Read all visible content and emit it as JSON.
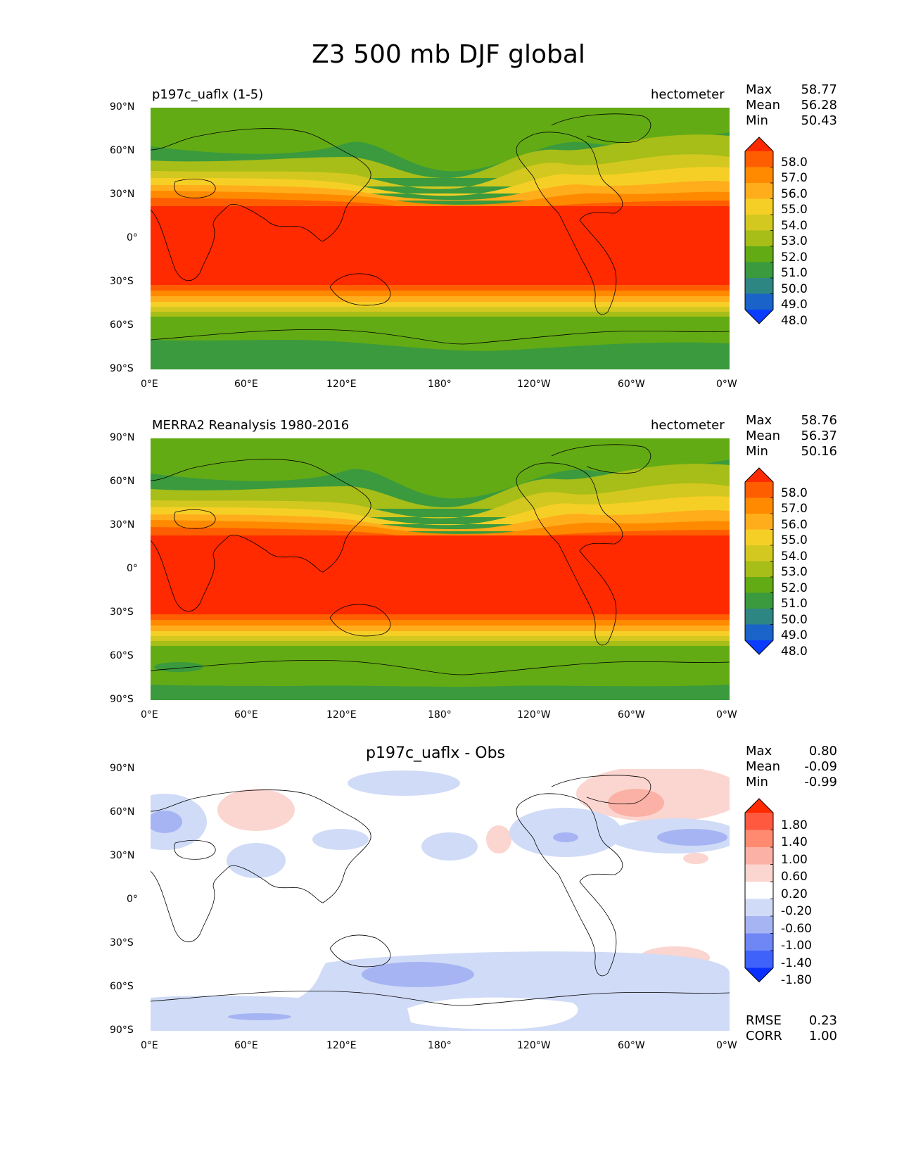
{
  "title": "Z3 500 mb DJF global",
  "lat_ticks": [
    "90°N",
    "60°N",
    "30°N",
    "0°",
    "30°S",
    "60°S",
    "90°S"
  ],
  "lon_ticks": [
    "0°E",
    "60°E",
    "120°E",
    "180°",
    "120°W",
    "60°W",
    "0°W"
  ],
  "panels": [
    {
      "title": "p197c_uaflx (1-5)",
      "units": "hectometer",
      "stats": {
        "max_label": "Max",
        "max": "58.77",
        "mean_label": "Mean",
        "mean": "56.28",
        "min_label": "Min",
        "min": "50.43"
      },
      "colorbar_labels": [
        "58.0",
        "57.0",
        "56.0",
        "55.0",
        "54.0",
        "53.0",
        "52.0",
        "51.0",
        "50.0",
        "49.0",
        "48.0"
      ],
      "colorbar_colors": [
        "#ff2a00",
        "#ff5e00",
        "#ff8a00",
        "#ffad1a",
        "#f6cf26",
        "#d3c81f",
        "#a7bd18",
        "#63ab14",
        "#3a9a3d",
        "#2e8683",
        "#1a63c8",
        "#0a3dff"
      ]
    },
    {
      "title": "MERRA2 Reanalysis 1980-2016",
      "units": "hectometer",
      "stats": {
        "max_label": "Max",
        "max": "58.76",
        "mean_label": "Mean",
        "mean": "56.37",
        "min_label": "Min",
        "min": "50.16"
      },
      "colorbar_labels": [
        "58.0",
        "57.0",
        "56.0",
        "55.0",
        "54.0",
        "53.0",
        "52.0",
        "51.0",
        "50.0",
        "49.0",
        "48.0"
      ],
      "colorbar_colors": [
        "#ff2a00",
        "#ff5e00",
        "#ff8a00",
        "#ffad1a",
        "#f6cf26",
        "#d3c81f",
        "#a7bd18",
        "#63ab14",
        "#3a9a3d",
        "#2e8683",
        "#1a63c8",
        "#0a3dff"
      ]
    },
    {
      "title": "p197c_uaflx - Obs",
      "stats": {
        "max_label": "Max",
        "max": "0.80",
        "mean_label": "Mean",
        "mean": "-0.09",
        "min_label": "Min",
        "min": "-0.99"
      },
      "colorbar_labels": [
        "1.80",
        "1.40",
        "1.00",
        "0.60",
        "0.20",
        "-0.20",
        "-0.60",
        "-1.00",
        "-1.40",
        "-1.80"
      ],
      "colorbar_colors": [
        "#ff2a00",
        "#ff5a3f",
        "#ff8a70",
        "#fbb1a6",
        "#fbd5cf",
        "#ffffff",
        "#d0dbf7",
        "#a6b4f3",
        "#6f87f5",
        "#3f62fb",
        "#0a30ff"
      ],
      "metrics": {
        "rmse_label": "RMSE",
        "rmse": "0.23",
        "corr_label": "CORR",
        "corr": "1.00"
      }
    }
  ]
}
